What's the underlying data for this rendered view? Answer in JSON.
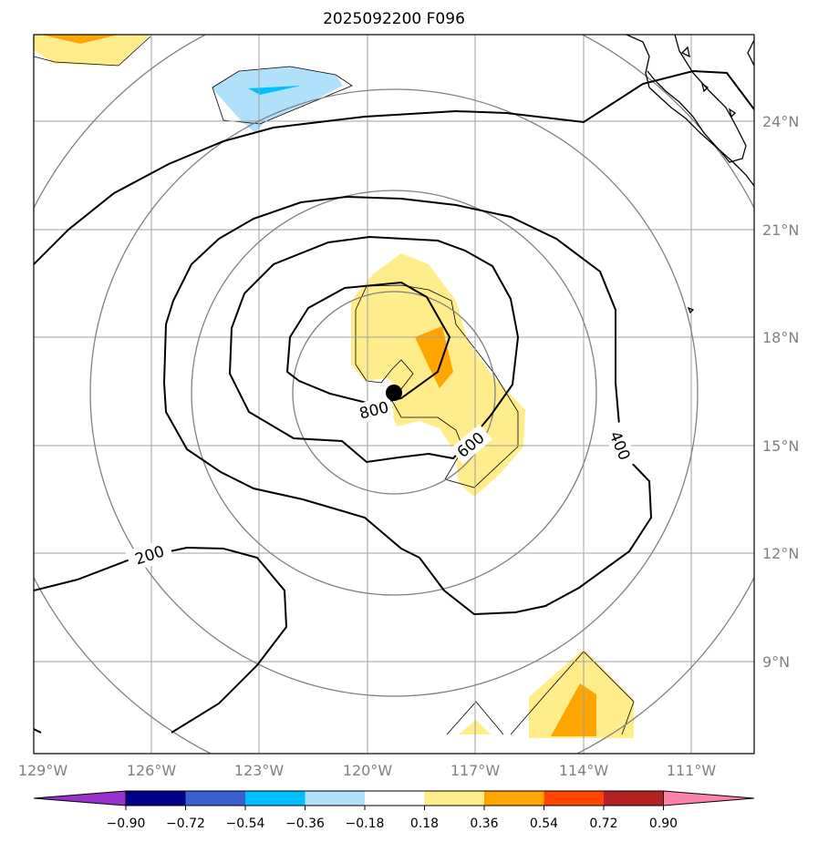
{
  "chart_data": {
    "type": "contour-map",
    "title": "2025092200 F096",
    "projection": "polar stereographic regional",
    "lon_range": [
      -129,
      -109
    ],
    "lat_range": [
      7,
      26
    ],
    "lon_ticks": [
      "129°W",
      "126°W",
      "123°W",
      "120°W",
      "117°W",
      "114°W",
      "111°W"
    ],
    "lat_ticks": [
      "24°N",
      "21°N",
      "18°N",
      "15°N",
      "12°N",
      "9°N"
    ],
    "contour_labels": [
      "200",
      "400",
      "600",
      "800"
    ],
    "contour_levels": [
      200,
      400,
      600,
      800
    ],
    "storm_center": {
      "lon": -119.2,
      "lat": 16.4
    },
    "colorbar": {
      "ticks": [
        "−0.90",
        "−0.72",
        "−0.54",
        "−0.36",
        "−0.18",
        "0.18",
        "0.36",
        "0.54",
        "0.72",
        "0.90"
      ],
      "bounds": [
        -0.9,
        -0.72,
        -0.54,
        -0.36,
        -0.18,
        0.18,
        0.36,
        0.54,
        0.72,
        0.9
      ],
      "colors": [
        "#9932cc",
        "#00008b",
        "#3a5fcd",
        "#00bfff",
        "#b0e0fa",
        "#ffffff",
        "#ffec8b",
        "#ffa500",
        "#ff4500",
        "#b22222",
        "#ff82ab"
      ],
      "extend": "both"
    },
    "shading_colors": {
      "pale_yellow": "#ffec8b",
      "orange": "#ffa500",
      "light_blue": "#b0e0fa",
      "cyan": "#00bfff"
    },
    "grid": true
  }
}
